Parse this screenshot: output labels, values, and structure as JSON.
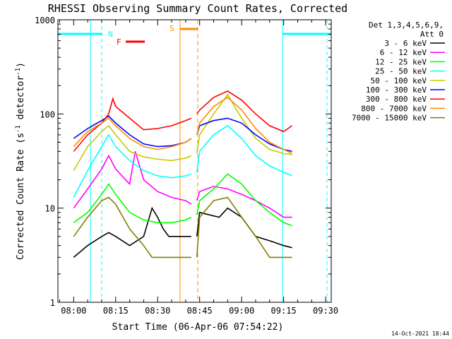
{
  "chart_data": {
    "type": "line",
    "title": "RHESSI Observing Summary Count Rates, Corrected",
    "xlabel": "Start Time (06-Apr-06 07:54:22)",
    "ylabel_parts": [
      "Corrected Count Rate (s",
      "-1",
      " detector",
      "-1",
      ")"
    ],
    "yscale": "log",
    "ylim": [
      1,
      1000
    ],
    "xlim": [
      "07:54:22",
      "09:32:00"
    ],
    "y_ticks": [
      {
        "value": 1,
        "label": "1"
      },
      {
        "value": 10,
        "label": "10"
      },
      {
        "value": 100,
        "label": "100"
      },
      {
        "value": 1000,
        "label": "1000"
      }
    ],
    "x_ticks": [
      {
        "value": "08:00",
        "label": "08:00"
      },
      {
        "value": "08:15",
        "label": "08:15"
      },
      {
        "value": "08:30",
        "label": "08:30"
      },
      {
        "value": "08:45",
        "label": "08:45"
      },
      {
        "value": "09:00",
        "label": "09:00"
      },
      {
        "value": "09:15",
        "label": "09:15"
      },
      {
        "value": "09:30",
        "label": "09:30"
      }
    ],
    "legend_header": [
      "Det 1,3,4,5,6,9,",
      "Att 0"
    ],
    "legend_placement": "right",
    "series": [
      {
        "name": "3 - 6 keV",
        "color": "#000000",
        "t": [
          0,
          5,
          10,
          12.5,
          15,
          20,
          25,
          28,
          30,
          32,
          34,
          37,
          40,
          42,
          44,
          45,
          52,
          55,
          60,
          65,
          70,
          75,
          78
        ],
        "y": [
          3,
          4,
          5,
          5.5,
          5,
          4,
          5,
          10,
          8,
          6,
          5,
          5,
          5,
          5,
          5,
          9,
          8,
          10,
          8,
          5,
          4.5,
          4,
          3.8
        ]
      },
      {
        "name": "6 - 12 keV",
        "color": "#ff00ff",
        "t": [
          0,
          5,
          10,
          12.5,
          15,
          20,
          22,
          25,
          30,
          35,
          40,
          42,
          44,
          45,
          50,
          55,
          60,
          65,
          70,
          75,
          78
        ],
        "y": [
          10,
          16,
          26,
          36,
          26,
          18,
          40,
          20,
          15,
          13,
          12,
          11,
          12,
          15,
          17,
          16,
          14,
          12,
          10,
          8,
          8
        ]
      },
      {
        "name": "12 - 25 keV",
        "color": "#00ff00",
        "t": [
          0,
          5,
          10,
          12.5,
          15,
          20,
          25,
          30,
          35,
          40,
          42,
          44,
          45,
          50,
          55,
          60,
          65,
          70,
          75,
          78
        ],
        "y": [
          7,
          9,
          14,
          18,
          14,
          9,
          7.5,
          7,
          7,
          7.5,
          8,
          8.5,
          12,
          16,
          23,
          18,
          12,
          9,
          7,
          6.5
        ]
      },
      {
        "name": "25 - 50 keV",
        "color": "#00ffff",
        "t": [
          0,
          5,
          10,
          12.5,
          15,
          20,
          25,
          30,
          35,
          40,
          42,
          44,
          45,
          50,
          55,
          60,
          65,
          70,
          75,
          78
        ],
        "y": [
          13,
          25,
          45,
          60,
          45,
          32,
          25,
          22,
          21,
          22,
          23,
          24,
          40,
          60,
          75,
          55,
          36,
          28,
          24,
          22
        ]
      },
      {
        "name": "50 - 100 keV",
        "color": "#c8c800",
        "t": [
          0,
          5,
          10,
          12.5,
          15,
          20,
          25,
          30,
          35,
          40,
          42,
          44,
          45,
          50,
          55,
          60,
          65,
          70,
          75,
          78
        ],
        "y": [
          25,
          45,
          65,
          75,
          60,
          40,
          35,
          33,
          32,
          34,
          36,
          38,
          60,
          100,
          160,
          90,
          55,
          42,
          38,
          37
        ]
      },
      {
        "name": "100 - 300 keV",
        "color": "#0000ff",
        "t": [
          0,
          5,
          10,
          12.5,
          15,
          20,
          25,
          30,
          35,
          40,
          42,
          44,
          45,
          50,
          55,
          60,
          65,
          70,
          75,
          78
        ],
        "y": [
          55,
          70,
          85,
          95,
          80,
          60,
          48,
          45,
          46,
          50,
          55,
          60,
          75,
          85,
          90,
          80,
          60,
          48,
          42,
          40
        ]
      },
      {
        "name": "300 - 800 keV",
        "color": "#ff0000",
        "t": [
          0,
          5,
          10,
          12.5,
          14,
          15,
          20,
          25,
          30,
          35,
          40,
          42,
          44,
          45,
          50,
          55,
          60,
          65,
          70,
          75,
          78
        ],
        "y": [
          40,
          60,
          80,
          100,
          145,
          120,
          90,
          68,
          70,
          75,
          85,
          90,
          100,
          110,
          150,
          175,
          140,
          100,
          75,
          65,
          75
        ]
      },
      {
        "name": "800 - 7000 keV",
        "color": "#ff8c00",
        "t": [
          0,
          5,
          10,
          12.5,
          15,
          20,
          25,
          30,
          35,
          40,
          42,
          44,
          45,
          50,
          55,
          60,
          65,
          70,
          75,
          78
        ],
        "y": [
          45,
          65,
          80,
          90,
          75,
          55,
          45,
          42,
          45,
          50,
          55,
          60,
          80,
          120,
          150,
          110,
          70,
          50,
          42,
          38
        ]
      },
      {
        "name": "7000 - 15000 keV",
        "color": "#808000",
        "t": [
          0,
          5,
          10,
          12.5,
          15,
          20,
          25,
          28,
          30,
          35,
          40,
          42,
          44,
          45,
          50,
          55,
          60,
          65,
          70,
          75,
          78
        ],
        "y": [
          5,
          8,
          12,
          13,
          11,
          6,
          4,
          3,
          3,
          3,
          3,
          3,
          3,
          8,
          12,
          13,
          8,
          5,
          3,
          3,
          3
        ]
      }
    ],
    "flags": [
      {
        "label": "N",
        "color": "#00ffff"
      },
      {
        "label": "F",
        "color": "#ff0000"
      },
      {
        "label": "S",
        "color": "#ff8c00"
      }
    ]
  },
  "footer": {
    "timestamp": "14-Oct-2021 18:44"
  }
}
